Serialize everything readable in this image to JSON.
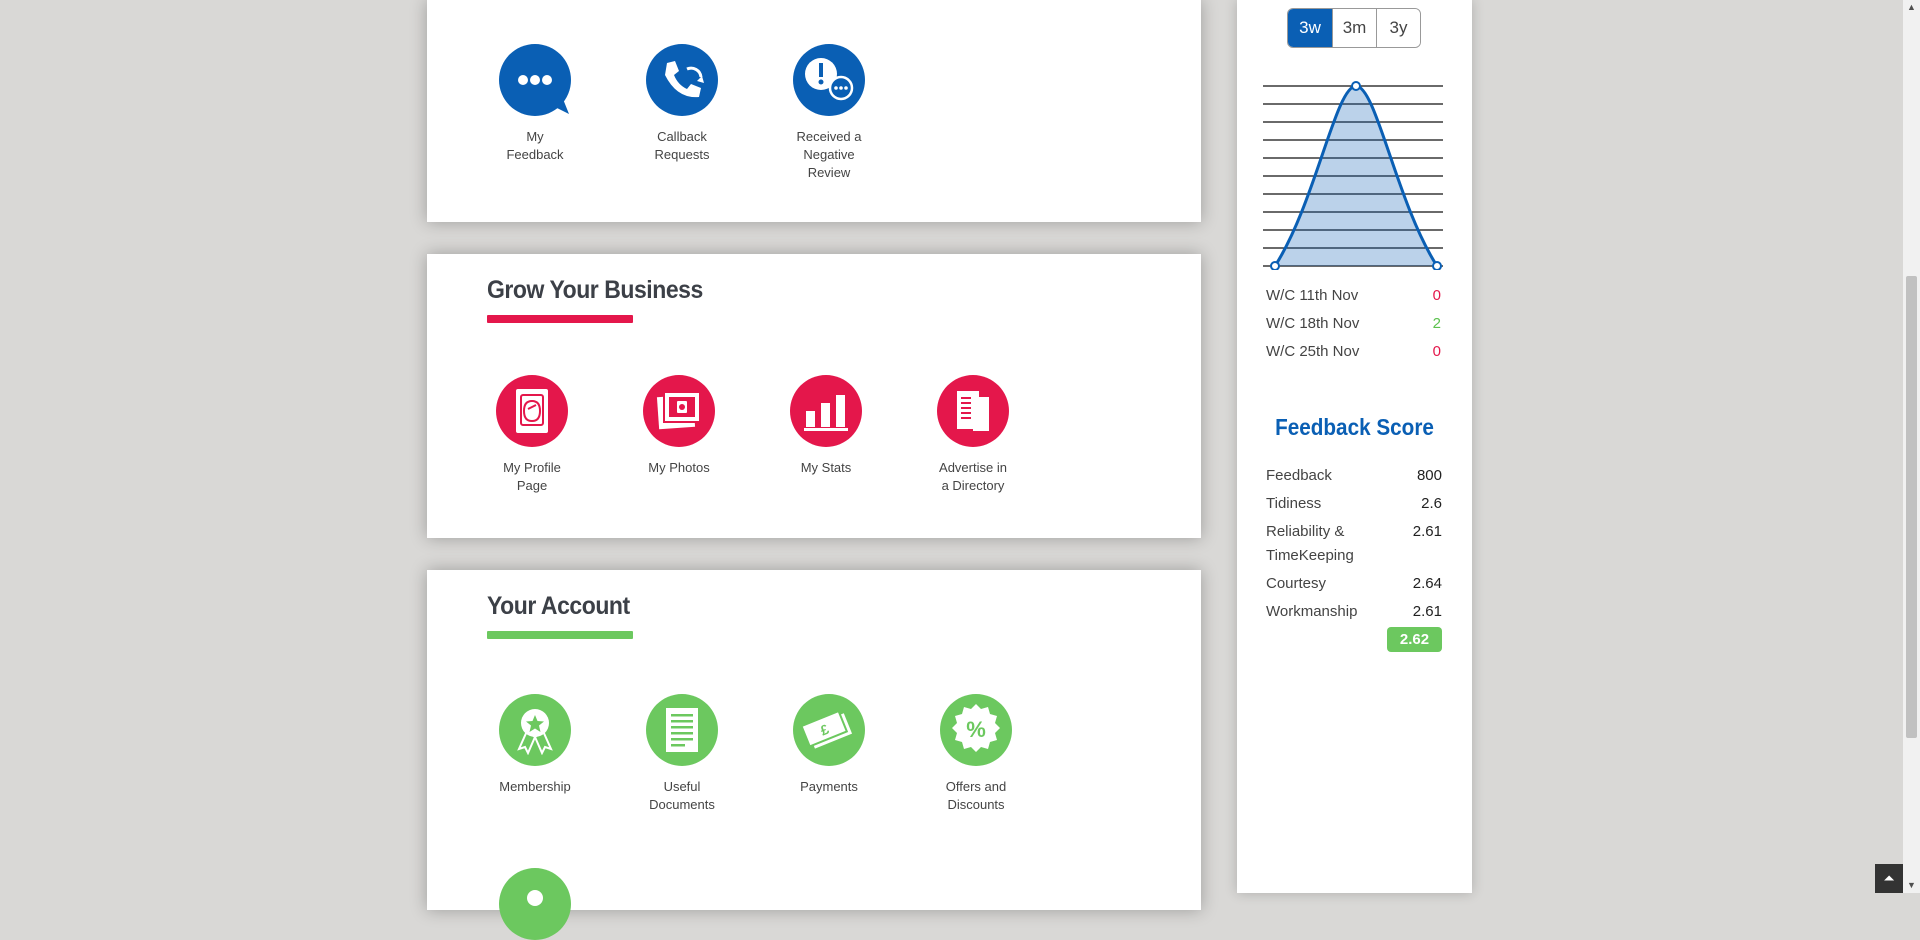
{
  "feedback_section": {
    "tiles": [
      {
        "label_1": "My",
        "label_2": "Feedback",
        "icon": "speech-bubble-icon"
      },
      {
        "label_1": "Callback",
        "label_2": "Requests",
        "icon": "phone-callback-icon"
      },
      {
        "label_1": "Received a",
        "label_2": "Negative",
        "label_3": "Review",
        "icon": "negative-review-icon"
      }
    ]
  },
  "grow_section": {
    "title": "Grow Your Business",
    "tiles": [
      {
        "label_1": "My Profile",
        "label_2": "Page",
        "icon": "profile-page-icon"
      },
      {
        "label_1": "My Photos",
        "icon": "photos-icon"
      },
      {
        "label_1": "My Stats",
        "icon": "bar-chart-icon"
      },
      {
        "label_1": "Advertise in",
        "label_2": "a Directory",
        "icon": "directory-icon"
      }
    ]
  },
  "account_section": {
    "title": "Your Account",
    "tiles": [
      {
        "label_1": "Membership",
        "icon": "award-ribbon-icon"
      },
      {
        "label_1": "Useful",
        "label_2": "Documents",
        "icon": "document-icon"
      },
      {
        "label_1": "Payments",
        "icon": "banknote-icon"
      },
      {
        "label_1": "Offers and",
        "label_2": "Discounts",
        "icon": "percent-badge-icon"
      }
    ]
  },
  "sidebar": {
    "range_buttons": [
      "3w",
      "3m",
      "3y"
    ],
    "range_selected": "3w",
    "weeks": [
      {
        "label": "W/C 11th Nov",
        "value": "0"
      },
      {
        "label": "W/C 18th Nov",
        "value": "2"
      },
      {
        "label": "W/C 25th Nov",
        "value": "0"
      }
    ],
    "feedback_score_title": "Feedback Score",
    "scores": [
      {
        "label": "Feedback",
        "value": "800"
      },
      {
        "label": "Tidiness",
        "value": "2.6"
      },
      {
        "label_1": "Reliability &",
        "label_2": "TimeKeeping",
        "value": "2.61"
      },
      {
        "label": "Courtesy",
        "value": "2.64"
      },
      {
        "label": "Workmanship",
        "value": "2.61"
      }
    ],
    "overall_score": "2.62"
  },
  "colors": {
    "blue": "#0a5fb4",
    "red": "#e4174b",
    "green": "#6cc85f"
  },
  "chart_data": {
    "type": "area",
    "categories": [
      "W/C 11th Nov",
      "W/C 18th Nov",
      "W/C 25th Nov"
    ],
    "series": [
      {
        "values": [
          0,
          2,
          0
        ]
      }
    ],
    "ylim": [
      0,
      2
    ],
    "grid": true,
    "color": "#0a5fb4"
  }
}
